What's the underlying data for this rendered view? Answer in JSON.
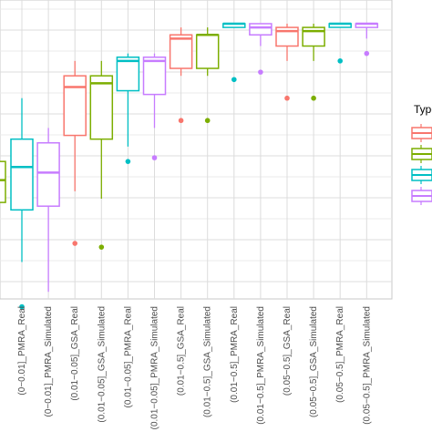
{
  "chart_data": {
    "type": "boxplot",
    "grid": true,
    "legend_position": "right",
    "legend_title": "Type",
    "ylim": [
      0,
      1
    ],
    "categories": [
      "(0−0.01]_PMRA_Real",
      "(0−0.01]_PMRA_Simulated",
      "(0.01−0.05]_GSA_Real",
      "(0.01−0.05]_GSA_Simulated",
      "(0.01−0.05]_PMRA_Real",
      "(0.01−0.05]_PMRA_Simulated",
      "(0.01−0.5]_GSA_Real",
      "(0.01−0.5]_GSA_Simulated",
      "(0.01−0.5]_PMRA_Real",
      "(0.01−0.5]_PMRA_Simulated",
      "(0.05−0.5]_GSA_Real",
      "(0.05−0.5]_GSA_Simulated",
      "(0.05−0.5]_PMRA_Real",
      "(0.05−0.5]_PMRA_Simulated"
    ],
    "legend_colors": [
      "#F8766D",
      "#7CAE00",
      "#00BFC4",
      "#C77CFF"
    ],
    "boxes": [
      {
        "category": "(0−0.01]_PMRA_Real",
        "color": "#00BFC4",
        "min": 0.36,
        "q1": 0.5,
        "median": 0.615,
        "q3": 0.69,
        "max": 0.8,
        "outliers": [
          0.24
        ]
      },
      {
        "category": "(0−0.01]_PMRA_Simulated",
        "color": "#C77CFF",
        "min": 0.28,
        "q1": 0.51,
        "median": 0.6,
        "q3": 0.68,
        "max": 0.72,
        "outliers": []
      },
      {
        "category": "(0.01−0.05]_GSA_Real",
        "color": "#F8766D",
        "min": 0.55,
        "q1": 0.7,
        "median": 0.83,
        "q3": 0.86,
        "max": 0.9,
        "outliers": [
          0.41
        ]
      },
      {
        "category": "(0.01−0.05]_GSA_Simulated",
        "color": "#7CAE00",
        "min": 0.53,
        "q1": 0.69,
        "median": 0.84,
        "q3": 0.86,
        "max": 0.9,
        "outliers": [
          0.4
        ]
      },
      {
        "category": "(0.01−0.05]_PMRA_Real",
        "color": "#00BFC4",
        "min": 0.67,
        "q1": 0.82,
        "median": 0.9,
        "q3": 0.91,
        "max": 0.92,
        "outliers": [
          0.63
        ]
      },
      {
        "category": "(0.01−0.05]_PMRA_Simulated",
        "color": "#C77CFF",
        "min": 0.72,
        "q1": 0.81,
        "median": 0.9,
        "q3": 0.91,
        "max": 0.92,
        "outliers": [
          0.64
        ]
      },
      {
        "category": "(0.01−0.5]_GSA_Real",
        "color": "#F8766D",
        "min": 0.86,
        "q1": 0.88,
        "median": 0.96,
        "q3": 0.97,
        "max": 0.99,
        "outliers": [
          0.74
        ]
      },
      {
        "category": "(0.01−0.5]_GSA_Simulated",
        "color": "#7CAE00",
        "min": 0.86,
        "q1": 0.88,
        "median": 0.97,
        "q3": 0.97,
        "max": 0.99,
        "outliers": [
          0.74
        ]
      },
      {
        "category": "(0.01−0.5]_PMRA_Real",
        "color": "#00BFC4",
        "min": 0.99,
        "q1": 0.99,
        "median": 1.0,
        "q3": 1.0,
        "max": 1.0,
        "outliers": [
          0.85
        ]
      },
      {
        "category": "(0.01−0.5]_PMRA_Simulated",
        "color": "#C77CFF",
        "min": 0.94,
        "q1": 0.97,
        "median": 0.99,
        "q3": 1.0,
        "max": 1.0,
        "outliers": [
          0.87
        ]
      },
      {
        "category": "(0.05−0.5]_GSA_Real",
        "color": "#F8766D",
        "min": 0.9,
        "q1": 0.94,
        "median": 0.98,
        "q3": 0.99,
        "max": 1.0,
        "outliers": [
          0.8
        ]
      },
      {
        "category": "(0.05−0.5]_GSA_Simulated",
        "color": "#7CAE00",
        "min": 0.9,
        "q1": 0.94,
        "median": 0.98,
        "q3": 0.99,
        "max": 1.0,
        "outliers": [
          0.8
        ]
      },
      {
        "category": "(0.05−0.5]_PMRA_Real",
        "color": "#00BFC4",
        "min": 1.0,
        "q1": 1.0,
        "median": 1.0,
        "q3": 1.0,
        "max": 1.0,
        "outliers": [
          0.9
        ]
      },
      {
        "category": "(0.05−0.5]_PMRA_Simulated",
        "color": "#C77CFF",
        "min": 0.96,
        "q1": 0.99,
        "median": 1.0,
        "q3": 1.0,
        "max": 1.0,
        "outliers": [
          0.92
        ]
      }
    ],
    "partial_box": {
      "color": "#7CAE00",
      "q1": 0.52,
      "median": 0.58,
      "q3": 0.63
    }
  }
}
